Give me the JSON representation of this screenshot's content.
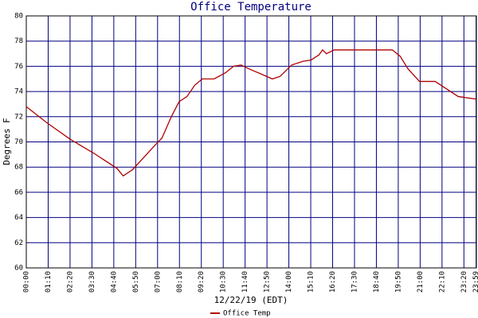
{
  "chart_data": {
    "type": "line",
    "title": "Office Temperature",
    "x_label": "12/22/19 (EDT)",
    "y_label": "Degrees F",
    "xlim": [
      0,
      1440
    ],
    "ylim": [
      60,
      80
    ],
    "xticks": [
      {
        "value": 0,
        "label": "00:00"
      },
      {
        "value": 70,
        "label": "01:10"
      },
      {
        "value": 140,
        "label": "02:20"
      },
      {
        "value": 210,
        "label": "03:30"
      },
      {
        "value": 280,
        "label": "04:40"
      },
      {
        "value": 350,
        "label": "05:50"
      },
      {
        "value": 420,
        "label": "07:00"
      },
      {
        "value": 490,
        "label": "08:10"
      },
      {
        "value": 560,
        "label": "09:20"
      },
      {
        "value": 630,
        "label": "10:30"
      },
      {
        "value": 700,
        "label": "11:40"
      },
      {
        "value": 770,
        "label": "12:50"
      },
      {
        "value": 840,
        "label": "14:00"
      },
      {
        "value": 910,
        "label": "15:10"
      },
      {
        "value": 980,
        "label": "16:20"
      },
      {
        "value": 1050,
        "label": "17:30"
      },
      {
        "value": 1120,
        "label": "18:40"
      },
      {
        "value": 1190,
        "label": "19:50"
      },
      {
        "value": 1260,
        "label": "21:00"
      },
      {
        "value": 1330,
        "label": "22:10"
      },
      {
        "value": 1400,
        "label": "23:20"
      },
      {
        "value": 1439,
        "label": "23:59"
      }
    ],
    "yticks": [
      60,
      62,
      64,
      66,
      68,
      70,
      72,
      74,
      76,
      78,
      80
    ],
    "grid": true,
    "grid_color": "#000080",
    "series": [
      {
        "name": "Office Temp",
        "color": "#b00000",
        "x": [
          0,
          67,
          141,
          216,
          290,
          310,
          340,
          377,
          414,
          434,
          464,
          489,
          514,
          539,
          563,
          601,
          638,
          663,
          687,
          712,
          750,
          787,
          812,
          849,
          886,
          911,
          936,
          948,
          960,
          985,
          1085,
          1171,
          1196,
          1221,
          1258,
          1308,
          1345,
          1382,
          1439
        ],
        "values": [
          72.8,
          71.5,
          70.2,
          69.1,
          67.9,
          67.3,
          67.8,
          68.8,
          69.8,
          70.3,
          72.0,
          73.2,
          73.6,
          74.5,
          75.0,
          75.0,
          75.5,
          76.0,
          76.1,
          75.8,
          75.4,
          75.0,
          75.2,
          76.1,
          76.4,
          76.5,
          76.9,
          77.3,
          77.0,
          77.3,
          77.3,
          77.3,
          76.8,
          75.8,
          74.8,
          74.8,
          74.2,
          73.6,
          73.4
        ]
      }
    ],
    "legend_position": "bottom"
  }
}
